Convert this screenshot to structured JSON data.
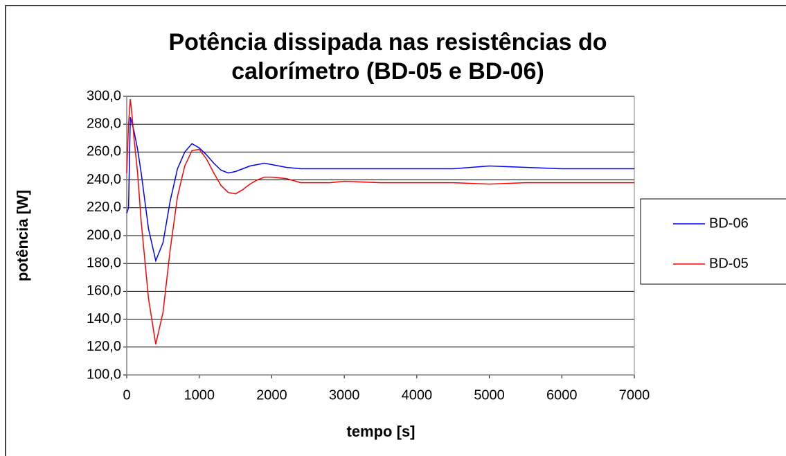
{
  "chart_data": {
    "type": "line",
    "title": "Potência dissipada nas resistências do calorímetro (BD-05 e BD-06)",
    "xlabel": "tempo [s]",
    "ylabel": "potência [W]",
    "x": [
      0,
      25,
      50,
      75,
      100,
      150,
      200,
      300,
      400,
      500,
      600,
      700,
      800,
      900,
      1000,
      1100,
      1200,
      1300,
      1400,
      1500,
      1600,
      1700,
      1800,
      1900,
      2000,
      2200,
      2400,
      2600,
      2800,
      3000,
      3500,
      4000,
      4500,
      5000,
      5500,
      6000,
      6500,
      7000
    ],
    "series": [
      {
        "name": "BD-06",
        "color": "#0000ff",
        "values": [
          216,
          220,
          285,
          280,
          275,
          262,
          245,
          205,
          182,
          195,
          225,
          248,
          260,
          266,
          263,
          258,
          252,
          247,
          245,
          246,
          248,
          250,
          251,
          252,
          251,
          249,
          248,
          248,
          248,
          248,
          248,
          248,
          248,
          250,
          249,
          248,
          248,
          248
        ]
      },
      {
        "name": "BD-05",
        "color": "#ff0000",
        "values": [
          245,
          280,
          298,
          285,
          270,
          245,
          210,
          155,
          122,
          145,
          190,
          228,
          250,
          261,
          262,
          255,
          245,
          236,
          231,
          230,
          233,
          237,
          240,
          242,
          242,
          241,
          238,
          238,
          238,
          239,
          238,
          238,
          238,
          237,
          238,
          238,
          238,
          238
        ]
      }
    ],
    "xlim": [
      0,
      7000
    ],
    "xticks": [
      0,
      1000,
      2000,
      3000,
      4000,
      5000,
      6000,
      7000
    ],
    "ylim": [
      100,
      300
    ],
    "yticks": [
      {
        "value": 100,
        "label": "100,0"
      },
      {
        "value": 120,
        "label": "120,0"
      },
      {
        "value": 140,
        "label": "140,0"
      },
      {
        "value": 160,
        "label": "160,0"
      },
      {
        "value": 180,
        "label": "180,0"
      },
      {
        "value": 200,
        "label": "200,0"
      },
      {
        "value": 220,
        "label": "220,0"
      },
      {
        "value": 240,
        "label": "240,0"
      },
      {
        "value": 260,
        "label": "260,0"
      },
      {
        "value": 280,
        "label": "280,0"
      },
      {
        "value": {
          "value": 300,
          "label": "300,0"
        }
      }
    ],
    "grid": true,
    "legend": "right"
  }
}
